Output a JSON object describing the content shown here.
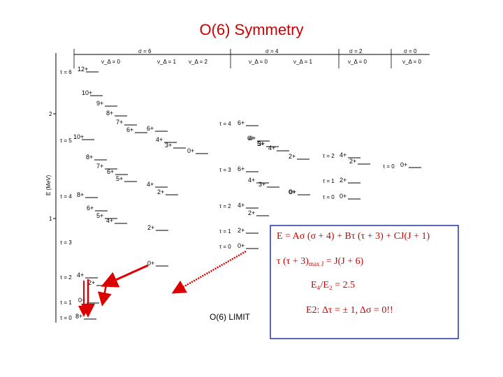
{
  "title": "O(6) Symmetry",
  "sigma_headers": [
    "σ = 6",
    "σ = 4",
    "σ = 2",
    "σ = 0"
  ],
  "nu_headers": [
    "ν_Δ = 0",
    "ν_Δ = 1",
    "ν_Δ = 2",
    "ν_Δ = 0",
    "ν_Δ = 1",
    "ν_Δ = 0",
    "ν_Δ = 0"
  ],
  "y_axis_label": "E (MeV)",
  "y_ticks": [
    "2",
    "1"
  ],
  "tau_labels": [
    "τ = 6",
    "τ = 5",
    "τ = 4",
    "τ = 3",
    "τ = 2",
    "τ = 1",
    "τ = 0",
    "τ = 4",
    "τ = 3",
    "τ = 2",
    "τ = 1",
    "τ = 0",
    "τ = 2",
    "τ = 1",
    "τ = 0",
    "τ = 0"
  ],
  "levels": [
    "12+",
    "10+",
    "9+",
    "8+",
    "7+",
    "6+",
    "10+",
    "8+",
    "7+",
    "6+",
    "5+",
    "8+",
    "6+",
    "5+",
    "4+",
    "6+",
    "4+",
    "3+",
    "4+",
    "2+",
    "0+",
    "6+",
    "4+",
    "3+",
    "0+",
    "4+",
    "2+",
    "2+",
    "0+",
    "4+",
    "2+",
    "0+",
    "8+",
    "6+",
    "5+",
    "4+",
    "2+",
    "6+",
    "4+",
    "3+",
    "0+",
    "4+",
    "2+",
    "2+",
    "0+",
    "4+",
    "2+",
    "2+",
    "0+",
    "0+"
  ],
  "limit_label": "O(6) LIMIT",
  "equations": {
    "energy": "E = Aσ (σ + 4) + Bτ (τ + 3) + CJ(J + 1)",
    "tau_rel_left": "τ (τ + 3)",
    "tau_rel_sub": "max J",
    "tau_rel_right": " = J(J + 6)",
    "ratio": "E₄/E₂ = 2.5",
    "e2_rule": "E2: Δτ = ± 1,  Δσ = 0!!"
  },
  "colors": {
    "title": "#cc0000",
    "arrow": "#dd0000",
    "box_border": "#2233aa"
  }
}
